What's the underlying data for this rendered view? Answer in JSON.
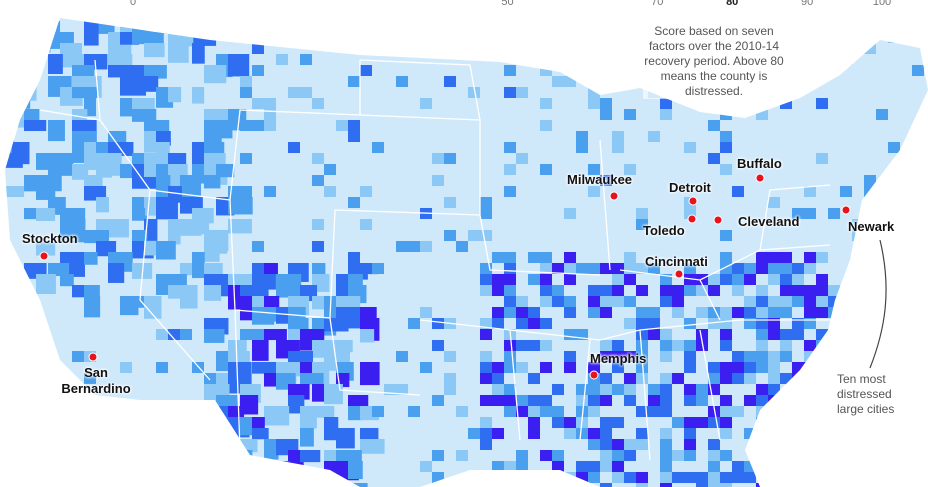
{
  "legend": {
    "ticks": [
      0,
      50,
      70,
      80,
      90,
      100
    ]
  },
  "note": "Score based on seven factors over the 2010-14 recovery period. Above 80 means the county is distressed.",
  "cities": [
    {
      "name": "Stockton"
    },
    {
      "name": "San Bernardino"
    },
    {
      "name": "Milwaukee"
    },
    {
      "name": "Detroit"
    },
    {
      "name": "Buffalo"
    },
    {
      "name": "Toledo"
    },
    {
      "name": "Cleveland"
    },
    {
      "name": "Newark"
    },
    {
      "name": "Cincinnati"
    },
    {
      "name": "Memphis"
    }
  ],
  "annotation": "Ten most distressed large cities"
}
